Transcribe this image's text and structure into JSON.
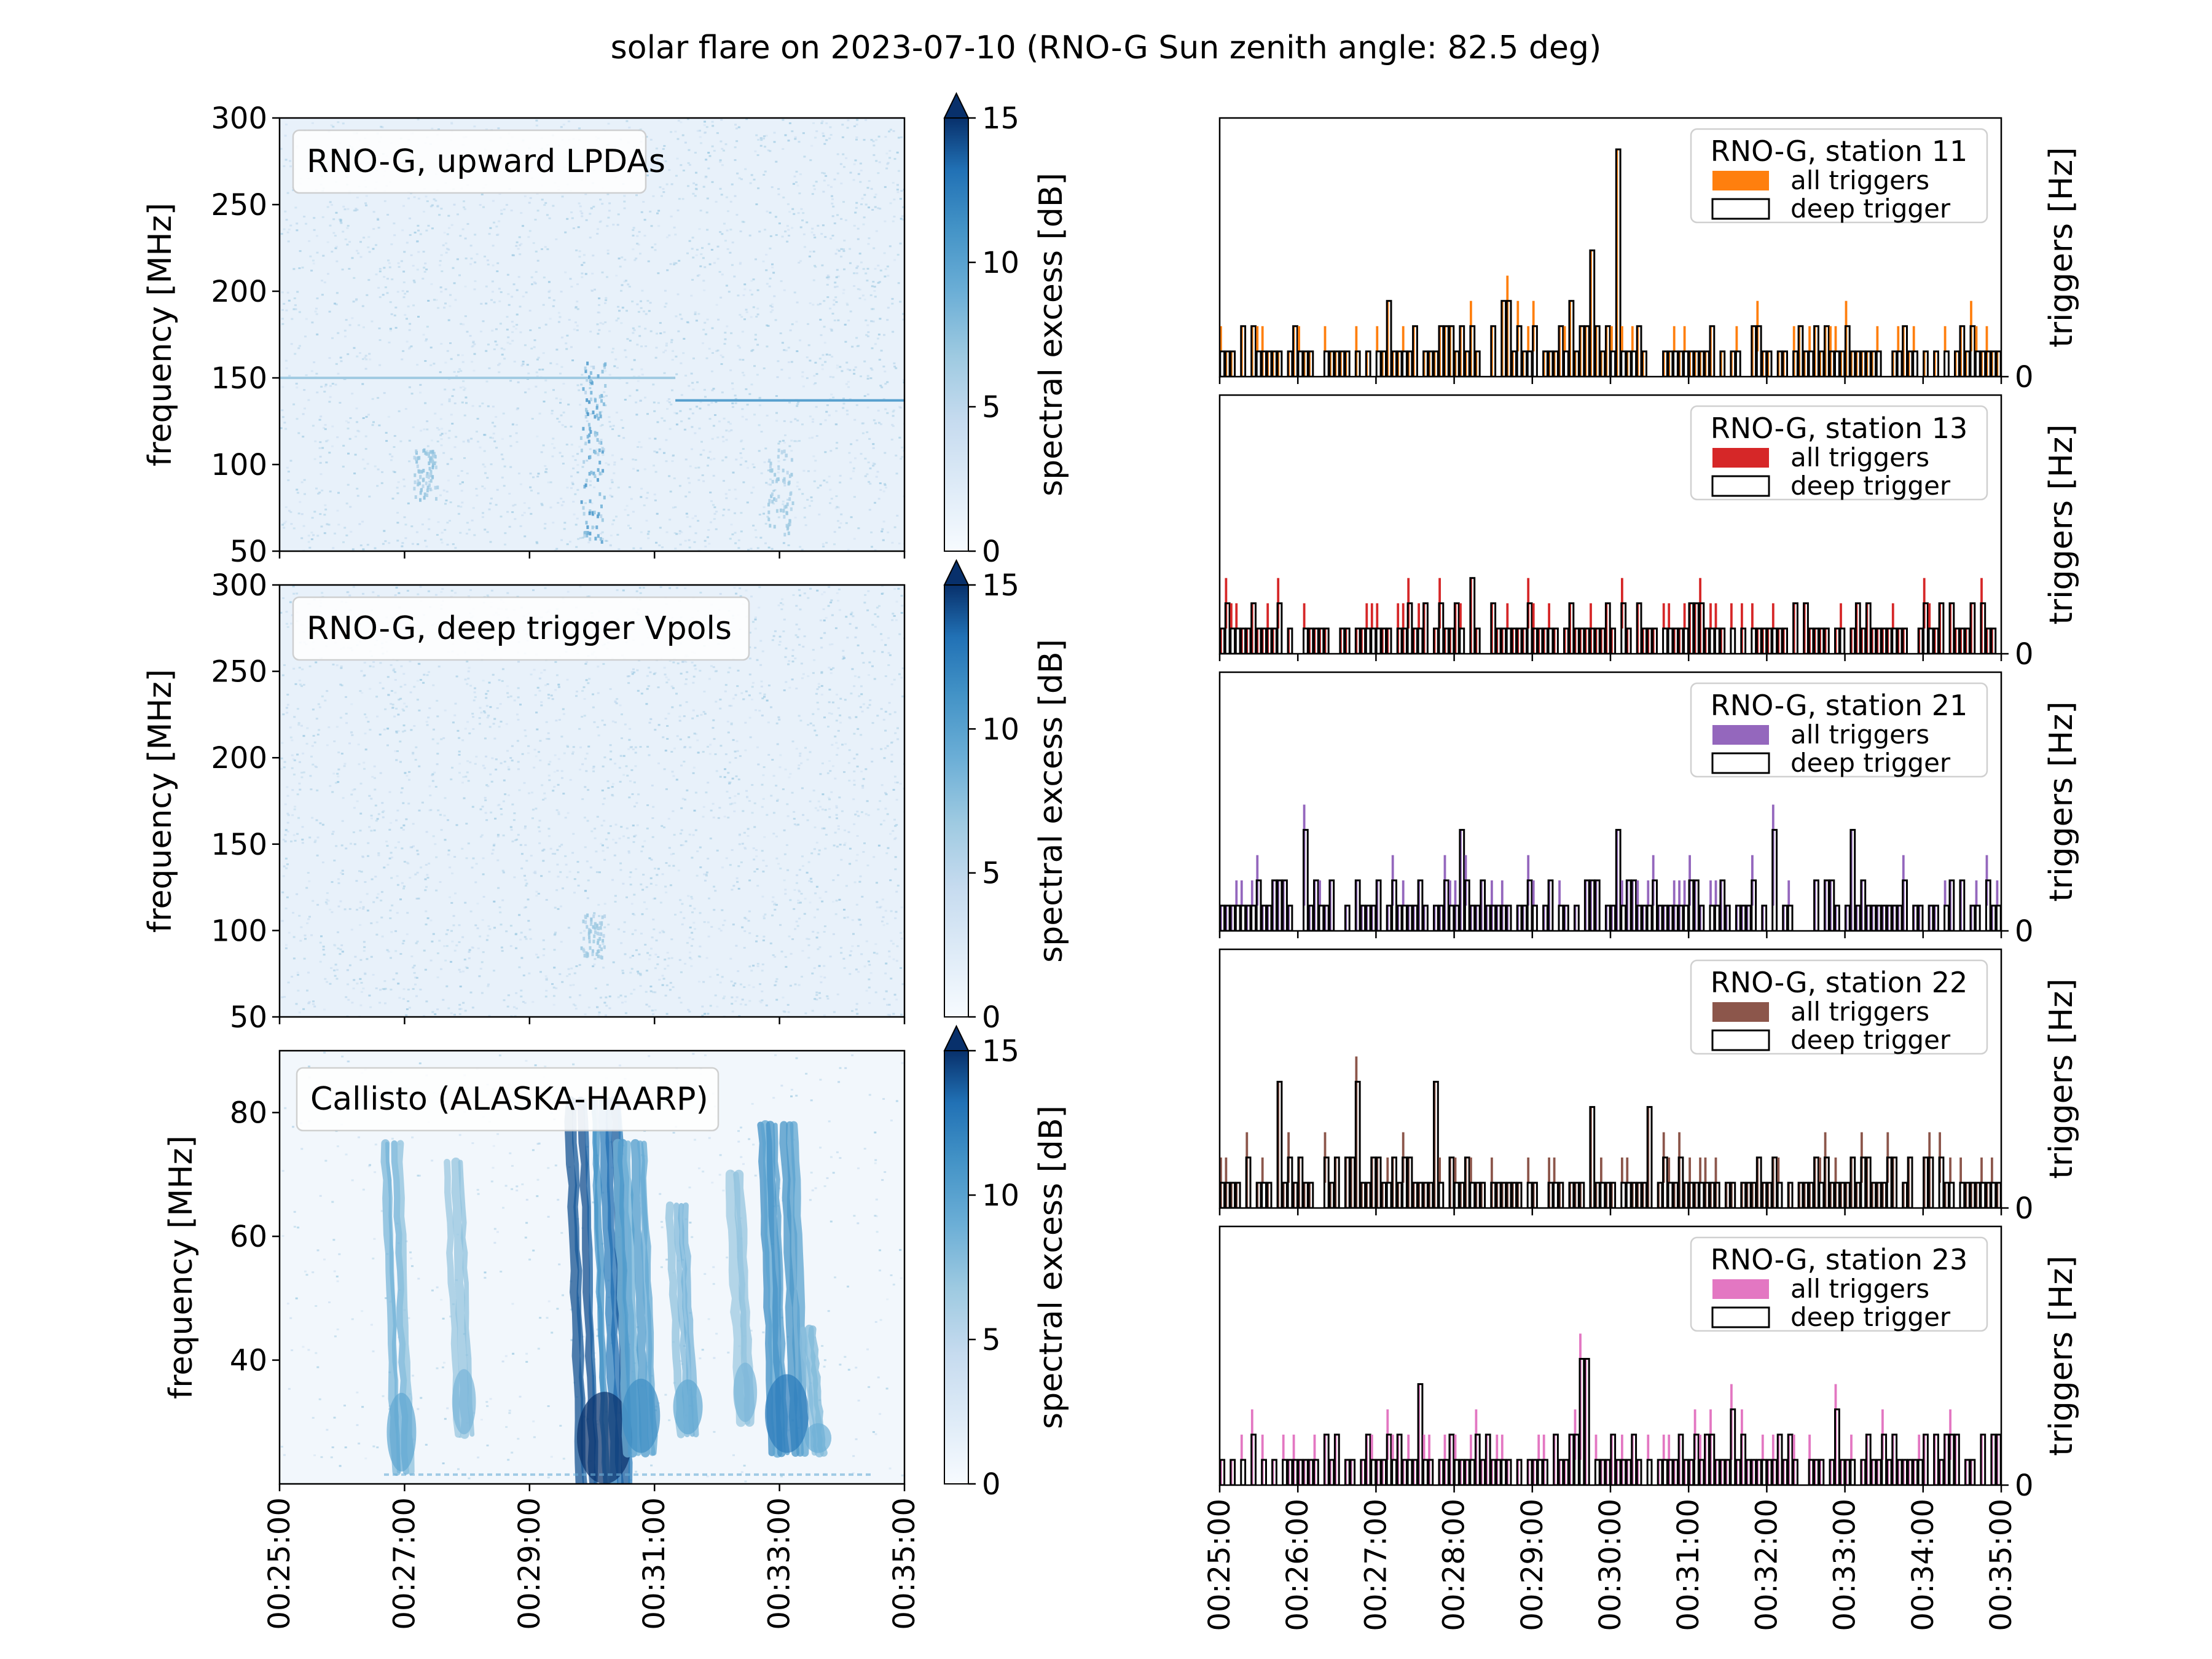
{
  "title": "solar flare on 2023-07-10 (RNO-G Sun zenith angle: 82.5 deg)",
  "colors": {
    "station_11": "#ff7f0e",
    "station_13": "#d62728",
    "station_21": "#9467bd",
    "station_22": "#8c564b",
    "station_23": "#e377c2",
    "spectrogram_cmap": "Blues",
    "deep_trigger_edge": "#000000"
  },
  "chart_data": [
    {
      "type": "heatmap",
      "label_box": "RNO-G, upward LPDAs",
      "ylabel": "frequency [MHz]",
      "ylim": [
        50,
        300
      ],
      "yticks": [
        50,
        100,
        150,
        200,
        250,
        300
      ],
      "xlim": [
        "00:25:00",
        "00:35:00"
      ],
      "colorbar": {
        "label": "spectral excess [dB]",
        "range": [
          0,
          15
        ],
        "ticks": [
          0,
          5,
          10,
          15
        ],
        "extend": "max"
      },
      "features": [
        {
          "kind": "narrowband_line",
          "frequency_MHz": 137,
          "time_range": [
            "00:31:20",
            "00:35:00"
          ],
          "level_dB": 8
        },
        {
          "kind": "narrowband_line",
          "frequency_MHz": 150,
          "time_range": [
            "00:25:00",
            "00:31:20"
          ],
          "level_dB": 3
        },
        {
          "kind": "burst",
          "time": "00:30:00",
          "freq_range": [
            55,
            160
          ],
          "level_dB": 9
        },
        {
          "kind": "burst",
          "time": "00:27:20",
          "freq_range": [
            80,
            110
          ],
          "level_dB": 4
        },
        {
          "kind": "burst",
          "time": "00:33:00",
          "freq_range": [
            60,
            110
          ],
          "level_dB": 3
        }
      ]
    },
    {
      "type": "heatmap",
      "label_box": "RNO-G, deep trigger Vpols",
      "ylabel": "frequency [MHz]",
      "ylim": [
        50,
        300
      ],
      "yticks": [
        50,
        100,
        150,
        200,
        250,
        300
      ],
      "xlim": [
        "00:25:00",
        "00:35:00"
      ],
      "colorbar": {
        "label": "spectral excess [dB]",
        "range": [
          0,
          15
        ],
        "ticks": [
          0,
          5,
          10,
          15
        ],
        "extend": "max"
      },
      "features": [
        {
          "kind": "burst",
          "time": "00:30:00",
          "freq_range": [
            85,
            110
          ],
          "level_dB": 3
        }
      ]
    },
    {
      "type": "heatmap",
      "label_box": "Callisto (ALASKA-HAARP)",
      "ylabel": "frequency [MHz]",
      "ylim": [
        20,
        90
      ],
      "yticks": [
        40,
        60,
        80
      ],
      "xlim": [
        "00:25:00",
        "00:35:00"
      ],
      "xticks": [
        "00:25:00",
        "00:27:00",
        "00:29:00",
        "00:31:00",
        "00:33:00",
        "00:35:00"
      ],
      "colorbar": {
        "label": "spectral excess [dB]",
        "range": [
          0,
          15
        ],
        "ticks": [
          0,
          5,
          10,
          15
        ],
        "extend": "max"
      },
      "features": [
        {
          "kind": "type_III_burst",
          "time": "00:26:50",
          "freq_range": [
            22,
            75
          ],
          "level_dB": 6
        },
        {
          "kind": "type_III_burst",
          "time": "00:27:50",
          "freq_range": [
            28,
            72
          ],
          "level_dB": 4
        },
        {
          "kind": "type_III_burst",
          "time": "00:30:05",
          "freq_range": [
            20,
            82
          ],
          "level_dB": 15
        },
        {
          "kind": "type_III_burst",
          "time": "00:30:40",
          "freq_range": [
            25,
            75
          ],
          "level_dB": 9
        },
        {
          "kind": "type_III_burst",
          "time": "00:31:25",
          "freq_range": [
            28,
            65
          ],
          "level_dB": 6
        },
        {
          "kind": "type_III_burst",
          "time": "00:32:20",
          "freq_range": [
            30,
            70
          ],
          "level_dB": 4
        },
        {
          "kind": "type_III_burst",
          "time": "00:33:00",
          "freq_range": [
            25,
            78
          ],
          "level_dB": 11
        },
        {
          "kind": "type_III_burst",
          "time": "00:33:30",
          "freq_range": [
            25,
            45
          ],
          "level_dB": 5
        }
      ]
    },
    {
      "type": "bar",
      "station": "RNO-G, station 11",
      "legend": [
        "all triggers",
        "deep trigger"
      ],
      "legend_loc": "upper right",
      "ylabel": "triggers [Hz]",
      "ytick_label": "0",
      "xlim": [
        "00:25:00",
        "00:35:00"
      ],
      "series_color": "#ff7f0e",
      "peaks": [
        {
          "time": "00:30:05",
          "value": 9
        },
        {
          "time": "00:29:45",
          "value": 5
        },
        {
          "time": "00:28:40",
          "value": 3
        },
        {
          "time": "00:29:30",
          "value": 3
        },
        {
          "time": "00:27:10",
          "value": 3
        }
      ],
      "baseline": 1
    },
    {
      "type": "bar",
      "station": "RNO-G, station 13",
      "legend": [
        "all triggers",
        "deep trigger"
      ],
      "legend_loc": "upper right",
      "ylabel": "triggers [Hz]",
      "ytick_label": "0",
      "xlim": [
        "00:25:00",
        "00:35:00"
      ],
      "series_color": "#d62728",
      "peaks": [
        {
          "time": "00:28:15",
          "value": 3
        },
        {
          "time": "00:25:05",
          "value": 2
        },
        {
          "time": "00:32:30",
          "value": 2
        }
      ],
      "baseline": 1
    },
    {
      "type": "bar",
      "station": "RNO-G, station 21",
      "legend": [
        "all triggers",
        "deep trigger"
      ],
      "legend_loc": "upper right",
      "ylabel": "triggers [Hz]",
      "ytick_label": "0",
      "xlim": [
        "00:25:00",
        "00:35:00"
      ],
      "series_color": "#9467bd",
      "peaks": [
        {
          "time": "00:26:05",
          "value": 4
        },
        {
          "time": "00:28:05",
          "value": 4
        },
        {
          "time": "00:30:05",
          "value": 4
        },
        {
          "time": "00:32:05",
          "value": 4
        },
        {
          "time": "00:33:05",
          "value": 4
        }
      ],
      "baseline": 1
    },
    {
      "type": "bar",
      "station": "RNO-G, station 22",
      "legend": [
        "all triggers",
        "deep trigger"
      ],
      "legend_loc": "upper right",
      "ylabel": "triggers [Hz]",
      "ytick_label": "0",
      "xlim": [
        "00:25:00",
        "00:35:00"
      ],
      "series_color": "#8c564b",
      "peaks": [
        {
          "time": "00:25:45",
          "value": 5
        },
        {
          "time": "00:26:45",
          "value": 5
        },
        {
          "time": "00:27:45",
          "value": 5
        },
        {
          "time": "00:29:45",
          "value": 4
        },
        {
          "time": "00:30:30",
          "value": 4
        }
      ],
      "baseline": 1
    },
    {
      "type": "bar",
      "station": "RNO-G, station 23",
      "legend": [
        "all triggers",
        "deep trigger"
      ],
      "legend_loc": "upper right",
      "ylabel": "triggers [Hz]",
      "ytick_label": "0",
      "xlim": [
        "00:25:00",
        "00:35:00"
      ],
      "xticks": [
        "00:25:00",
        "00:26:00",
        "00:27:00",
        "00:28:00",
        "00:29:00",
        "00:30:00",
        "00:31:00",
        "00:32:00",
        "00:33:00",
        "00:34:00",
        "00:35:00"
      ],
      "series_color": "#e377c2",
      "peaks": [
        {
          "time": "00:29:40",
          "value": 5
        },
        {
          "time": "00:27:35",
          "value": 4
        },
        {
          "time": "00:32:55",
          "value": 3
        },
        {
          "time": "00:31:35",
          "value": 3
        }
      ],
      "baseline": 1
    }
  ]
}
